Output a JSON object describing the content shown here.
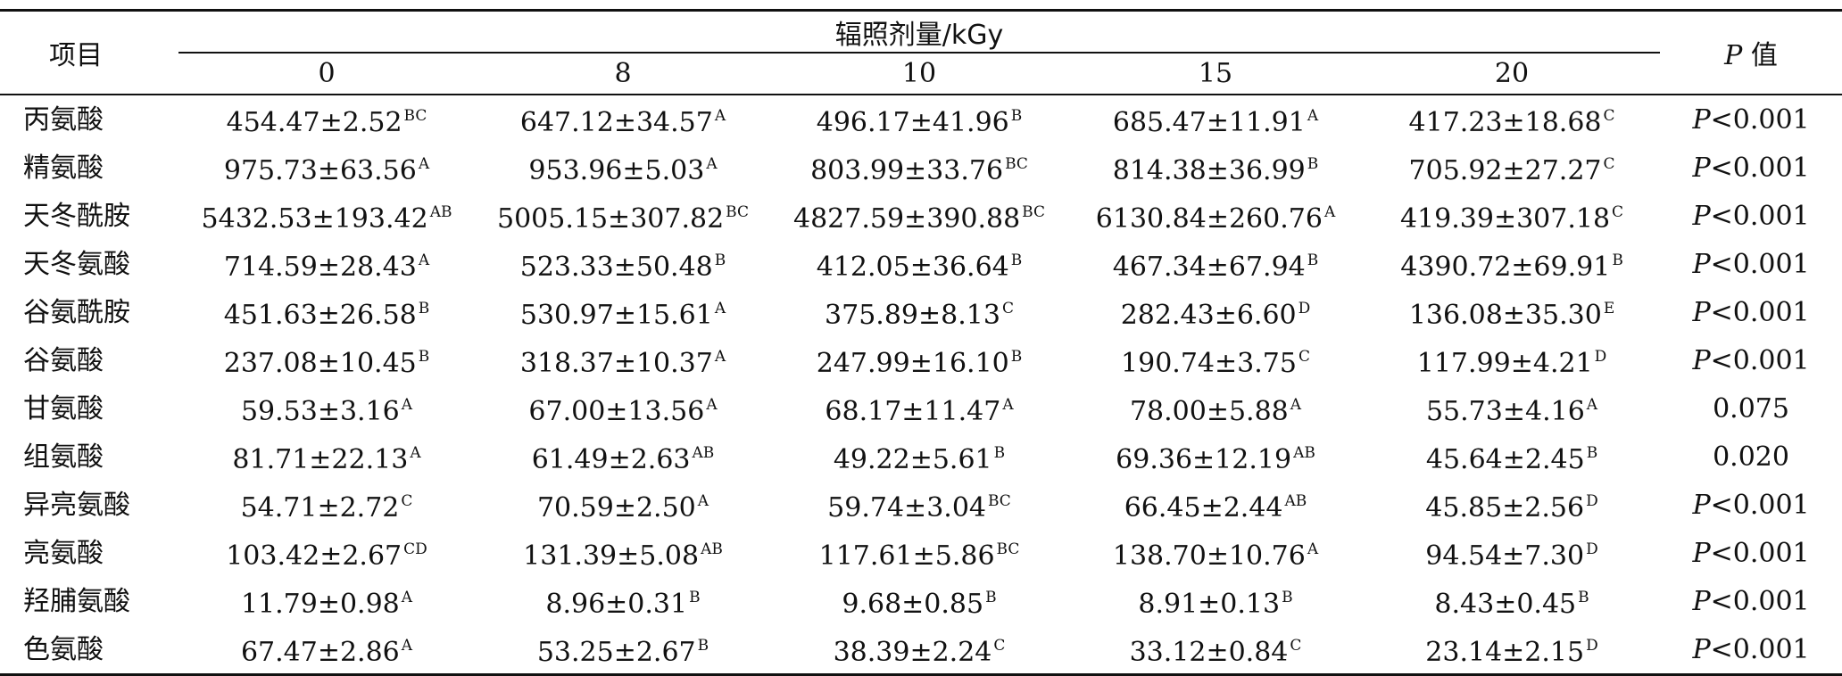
{
  "header": {
    "item_label": "项目",
    "group_label": "辐照剂量/kGy",
    "doses": [
      "0",
      "8",
      "10",
      "15",
      "20"
    ],
    "p_label_italic": "P",
    "p_label_rest": " 值"
  },
  "rows": [
    {
      "name": "丙氨酸",
      "cells": [
        {
          "v": "454.47±2.52",
          "s": "BC"
        },
        {
          "v": "647.12±34.57",
          "s": "A"
        },
        {
          "v": "496.17±41.96",
          "s": "B"
        },
        {
          "v": "685.47±11.91",
          "s": "A"
        },
        {
          "v": "417.23±18.68",
          "s": "C"
        }
      ],
      "p_italic": "P",
      "p_rest": "<0.001"
    },
    {
      "name": "精氨酸",
      "cells": [
        {
          "v": "975.73±63.56",
          "s": "A"
        },
        {
          "v": "953.96±5.03",
          "s": "A"
        },
        {
          "v": "803.99±33.76",
          "s": "BC"
        },
        {
          "v": "814.38±36.99",
          "s": "B"
        },
        {
          "v": "705.92±27.27",
          "s": "C"
        }
      ],
      "p_italic": "P",
      "p_rest": "<0.001"
    },
    {
      "name": "天冬酰胺",
      "cells": [
        {
          "v": "5432.53±193.42",
          "s": "AB"
        },
        {
          "v": "5005.15±307.82",
          "s": "BC"
        },
        {
          "v": "4827.59±390.88",
          "s": "BC"
        },
        {
          "v": "6130.84±260.76",
          "s": "A"
        },
        {
          "v": "419.39±307.18",
          "s": "C"
        }
      ],
      "p_italic": "P",
      "p_rest": "<0.001"
    },
    {
      "name": "天冬氨酸",
      "cells": [
        {
          "v": "714.59±28.43",
          "s": "A"
        },
        {
          "v": "523.33±50.48",
          "s": "B"
        },
        {
          "v": "412.05±36.64",
          "s": "B"
        },
        {
          "v": "467.34±67.94",
          "s": "B"
        },
        {
          "v": "4390.72±69.91",
          "s": "B"
        }
      ],
      "p_italic": "P",
      "p_rest": "<0.001"
    },
    {
      "name": "谷氨酰胺",
      "cells": [
        {
          "v": "451.63±26.58",
          "s": "B"
        },
        {
          "v": "530.97±15.61",
          "s": "A"
        },
        {
          "v": "375.89±8.13",
          "s": "C"
        },
        {
          "v": "282.43±6.60",
          "s": "D"
        },
        {
          "v": "136.08±35.30",
          "s": "E"
        }
      ],
      "p_italic": "P",
      "p_rest": "<0.001"
    },
    {
      "name": "谷氨酸",
      "cells": [
        {
          "v": "237.08±10.45",
          "s": "B"
        },
        {
          "v": "318.37±10.37",
          "s": "A"
        },
        {
          "v": "247.99±16.10",
          "s": "B"
        },
        {
          "v": "190.74±3.75",
          "s": "C"
        },
        {
          "v": "117.99±4.21",
          "s": "D"
        }
      ],
      "p_italic": "P",
      "p_rest": "<0.001"
    },
    {
      "name": "甘氨酸",
      "cells": [
        {
          "v": "59.53±3.16",
          "s": "A"
        },
        {
          "v": "67.00±13.56",
          "s": "A"
        },
        {
          "v": "68.17±11.47",
          "s": "A"
        },
        {
          "v": "78.00±5.88",
          "s": "A"
        },
        {
          "v": "55.73±4.16",
          "s": "A"
        }
      ],
      "p_italic": "",
      "p_rest": "0.075"
    },
    {
      "name": "组氨酸",
      "cells": [
        {
          "v": "81.71±22.13",
          "s": "A"
        },
        {
          "v": "61.49±2.63",
          "s": "AB"
        },
        {
          "v": "49.22±5.61",
          "s": "B"
        },
        {
          "v": "69.36±12.19",
          "s": "AB"
        },
        {
          "v": "45.64±2.45",
          "s": "B"
        }
      ],
      "p_italic": "",
      "p_rest": "0.020"
    },
    {
      "name": "异亮氨酸",
      "cells": [
        {
          "v": "54.71±2.72",
          "s": "C"
        },
        {
          "v": "70.59±2.50",
          "s": "A"
        },
        {
          "v": "59.74±3.04",
          "s": "BC"
        },
        {
          "v": "66.45±2.44",
          "s": "AB"
        },
        {
          "v": "45.85±2.56",
          "s": "D"
        }
      ],
      "p_italic": "P",
      "p_rest": "<0.001"
    },
    {
      "name": "亮氨酸",
      "cells": [
        {
          "v": "103.42±2.67",
          "s": "CD"
        },
        {
          "v": "131.39±5.08",
          "s": "AB"
        },
        {
          "v": "117.61±5.86",
          "s": "BC"
        },
        {
          "v": "138.70±10.76",
          "s": "A"
        },
        {
          "v": "94.54±7.30",
          "s": "D"
        }
      ],
      "p_italic": "P",
      "p_rest": "<0.001"
    },
    {
      "name": "羟脯氨酸",
      "cells": [
        {
          "v": "11.79±0.98",
          "s": "A"
        },
        {
          "v": "8.96±0.31",
          "s": "B"
        },
        {
          "v": "9.68±0.85",
          "s": "B"
        },
        {
          "v": "8.91±0.13",
          "s": "B"
        },
        {
          "v": "8.43±0.45",
          "s": "B"
        }
      ],
      "p_italic": "P",
      "p_rest": "<0.001"
    },
    {
      "name": "色氨酸",
      "cells": [
        {
          "v": "67.47±2.86",
          "s": "A"
        },
        {
          "v": "53.25±2.67",
          "s": "B"
        },
        {
          "v": "38.39±2.24",
          "s": "C"
        },
        {
          "v": "33.12±0.84",
          "s": "C"
        },
        {
          "v": "23.14±2.15",
          "s": "D"
        }
      ],
      "p_italic": "P",
      "p_rest": "<0.001"
    }
  ]
}
